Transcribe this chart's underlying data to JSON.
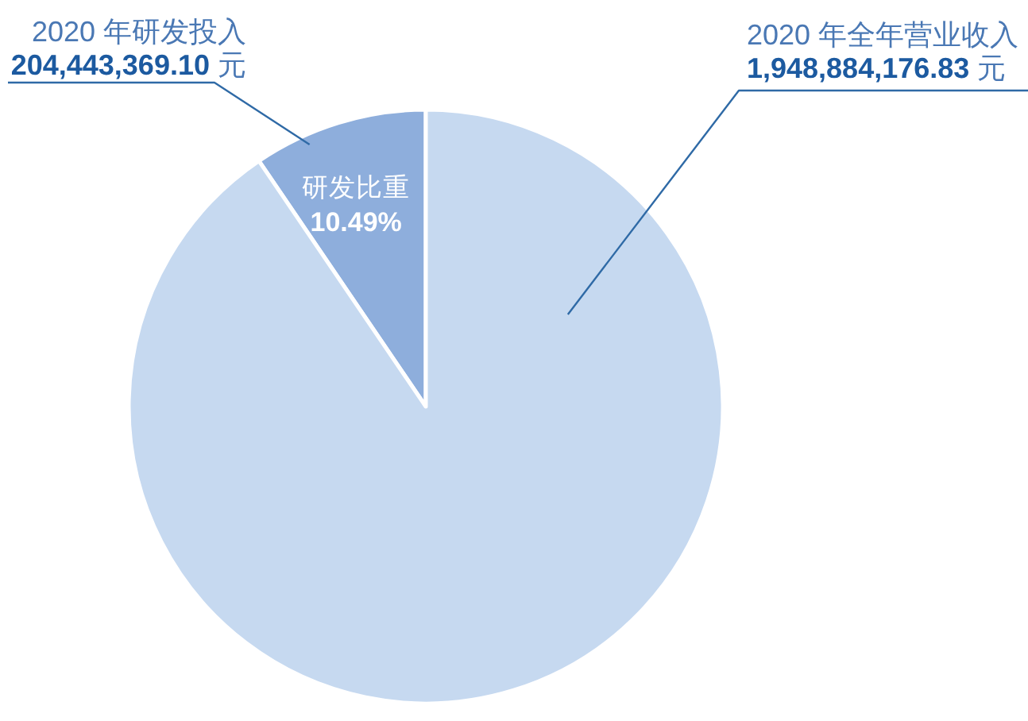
{
  "chart_data": {
    "type": "pie",
    "categories": [
      "2020 年研发投入",
      "2020 年全年营业收入"
    ],
    "values": [
      204443369.1,
      1948884176.83
    ],
    "colors": [
      "#8eaedc",
      "#c6d9f0"
    ],
    "value_labels": [
      "204,443,369.10 元",
      "1,948,884,176.83 元"
    ],
    "annotations": [
      "研发比重",
      "10.49%"
    ]
  }
}
